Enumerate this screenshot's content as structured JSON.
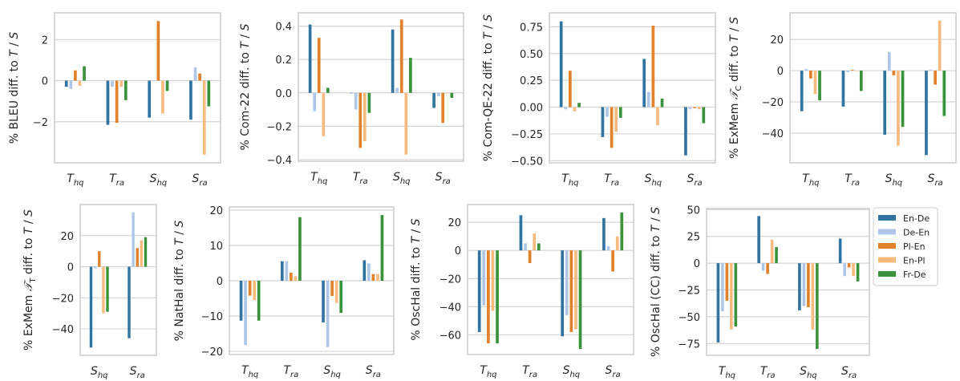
{
  "chart_data": [
    {
      "type": "bar",
      "ylabel": "% BLEU diff. to T / S",
      "categories": [
        "T_hq",
        "T_ra",
        "S_hq",
        "S_ra"
      ],
      "ylim": [
        -4.0,
        3.3
      ],
      "yticks": [
        2,
        0,
        -2
      ],
      "yticklabels": [
        "2",
        "0",
        "−2"
      ],
      "grid": true,
      "series": [
        {
          "name": "En-De",
          "values": [
            -0.3,
            -2.15,
            -1.8,
            -1.9
          ]
        },
        {
          "name": "De-En",
          "values": [
            -0.4,
            -0.3,
            0.0,
            0.65
          ]
        },
        {
          "name": "Pl-En",
          "values": [
            0.5,
            -2.05,
            2.9,
            0.35
          ]
        },
        {
          "name": "En-Pl",
          "values": [
            -0.25,
            -0.3,
            -1.6,
            -3.6
          ]
        },
        {
          "name": "Fr-De",
          "values": [
            0.7,
            -0.95,
            -0.5,
            -1.25
          ]
        }
      ]
    },
    {
      "type": "bar",
      "ylabel": "% Com-22 diff. to T / S",
      "categories": [
        "T_hq",
        "T_ra",
        "S_hq",
        "S_ra"
      ],
      "ylim": [
        -0.41,
        0.48
      ],
      "yticks": [
        0.4,
        0.2,
        0,
        -0.2,
        -0.4
      ],
      "yticklabels": [
        "0.4",
        "0.2",
        "0.0",
        "−0.2",
        "−0.4"
      ],
      "grid": true,
      "series": [
        {
          "name": "En-De",
          "values": [
            0.41,
            0.0,
            0.38,
            -0.09
          ]
        },
        {
          "name": "De-En",
          "values": [
            -0.11,
            -0.1,
            0.03,
            -0.02
          ]
        },
        {
          "name": "Pl-En",
          "values": [
            0.33,
            -0.33,
            0.44,
            -0.18
          ]
        },
        {
          "name": "En-Pl",
          "values": [
            -0.26,
            -0.29,
            -0.37,
            0.0
          ]
        },
        {
          "name": "Fr-De",
          "values": [
            0.03,
            -0.12,
            0.21,
            -0.03
          ]
        }
      ]
    },
    {
      "type": "bar",
      "ylabel": "% Com-QE-22 diff. to T / S",
      "categories": [
        "T_hq",
        "T_ra",
        "S_hq",
        "S_ra"
      ],
      "ylim": [
        -0.52,
        0.88
      ],
      "yticks": [
        0.75,
        0.5,
        0.25,
        0,
        -0.25,
        -0.5
      ],
      "yticklabels": [
        "0.75",
        "0.50",
        "0.25",
        "0.00",
        "−0.25",
        "−0.50"
      ],
      "grid": true,
      "series": [
        {
          "name": "En-De",
          "values": [
            0.8,
            -0.28,
            0.45,
            -0.45
          ]
        },
        {
          "name": "De-En",
          "values": [
            -0.02,
            -0.09,
            0.14,
            -0.02
          ]
        },
        {
          "name": "Pl-En",
          "values": [
            0.34,
            -0.38,
            0.76,
            -0.01
          ]
        },
        {
          "name": "En-Pl",
          "values": [
            -0.04,
            -0.23,
            -0.17,
            -0.02
          ]
        },
        {
          "name": "Fr-De",
          "values": [
            0.04,
            -0.1,
            0.08,
            -0.15
          ]
        }
      ]
    },
    {
      "type": "bar",
      "ylabel": "% ExMem 𝒯_C diff. to T / S",
      "categories": [
        "T_hq",
        "T_ra",
        "S_hq",
        "S_ra"
      ],
      "ylim": [
        -59,
        37
      ],
      "yticks": [
        20,
        0,
        -20,
        -40
      ],
      "yticklabels": [
        "20",
        "0",
        "−20",
        "−40"
      ],
      "grid": true,
      "series": [
        {
          "name": "En-De",
          "values": [
            -26,
            -23,
            -41,
            -54
          ]
        },
        {
          "name": "De-En",
          "values": [
            1,
            -1,
            12,
            0.5
          ]
        },
        {
          "name": "Pl-En",
          "values": [
            -5,
            0.5,
            -3,
            -9
          ]
        },
        {
          "name": "En-Pl",
          "values": [
            -15,
            0,
            -48,
            32
          ]
        },
        {
          "name": "Fr-De",
          "values": [
            -19,
            -13,
            -36,
            -29
          ]
        }
      ]
    },
    {
      "type": "bar",
      "ylabel": "% ExMem 𝒯_T diff. to T / S",
      "categories": [
        "S_hq",
        "S_ra"
      ],
      "ylim": [
        -57,
        40
      ],
      "yticks": [
        20,
        0,
        -20,
        -40
      ],
      "yticklabels": [
        "20",
        "0",
        "−20",
        "−40"
      ],
      "grid": true,
      "series": [
        {
          "name": "En-De",
          "values": [
            -52,
            -46
          ]
        },
        {
          "name": "De-En",
          "values": [
            -1,
            35
          ]
        },
        {
          "name": "Pl-En",
          "values": [
            10,
            12
          ]
        },
        {
          "name": "En-Pl",
          "values": [
            -30,
            17
          ]
        },
        {
          "name": "Fr-De",
          "values": [
            -29,
            19
          ]
        }
      ]
    },
    {
      "type": "bar",
      "ylabel": "% NatHal diff. to T / S",
      "categories": [
        "T_hq",
        "T_ra",
        "S_hq",
        "S_ra"
      ],
      "ylim": [
        -20.9,
        20.9
      ],
      "yticks": [
        20,
        10,
        0,
        -10,
        -20
      ],
      "yticklabels": [
        "20",
        "10",
        "0",
        "−10",
        "−20"
      ],
      "grid": true,
      "series": [
        {
          "name": "En-De",
          "values": [
            -11.3,
            5.5,
            -11.8,
            5.8
          ]
        },
        {
          "name": "De-En",
          "values": [
            -18.2,
            5.5,
            -18.8,
            4.9
          ]
        },
        {
          "name": "Pl-En",
          "values": [
            -4.2,
            2.3,
            -4.3,
            1.9
          ]
        },
        {
          "name": "En-Pl",
          "values": [
            -5.5,
            1.3,
            -6.3,
            1.9
          ]
        },
        {
          "name": "Fr-De",
          "values": [
            -11.3,
            18,
            -9.1,
            18.6
          ]
        }
      ]
    },
    {
      "type": "bar",
      "ylabel": "% OscHal diff. to T / S",
      "categories": [
        "T_hq",
        "T_ra",
        "S_hq",
        "S_ra"
      ],
      "ylim": [
        -74,
        32.6
      ],
      "yticks": [
        20,
        0,
        -20,
        -40,
        -60
      ],
      "yticklabels": [
        "20",
        "0",
        "−20",
        "−40",
        "−60"
      ],
      "grid": true,
      "series": [
        {
          "name": "En-De",
          "values": [
            -58,
            25,
            -61,
            23
          ]
        },
        {
          "name": "De-En",
          "values": [
            -39,
            5,
            -46,
            3
          ]
        },
        {
          "name": "Pl-En",
          "values": [
            -66,
            -9,
            -58,
            -15
          ]
        },
        {
          "name": "En-Pl",
          "values": [
            -43,
            12,
            -56,
            10
          ]
        },
        {
          "name": "Fr-De",
          "values": [
            -66,
            5,
            -70,
            27
          ]
        }
      ]
    },
    {
      "type": "bar",
      "ylabel": "% OscHal (CC) diff. to T / S",
      "categories": [
        "T_hq",
        "T_ra",
        "S_hq",
        "S_ra"
      ],
      "ylim": [
        -86,
        51
      ],
      "yticks": [
        50,
        25,
        0,
        -25,
        -50,
        -75
      ],
      "yticklabels": [
        "50",
        "25",
        "0",
        "−25",
        "−50",
        "−75"
      ],
      "grid": true,
      "legend": "right",
      "series": [
        {
          "name": "En-De",
          "values": [
            -74,
            44,
            -44,
            23
          ]
        },
        {
          "name": "De-En",
          "values": [
            -45,
            -7,
            -40,
            -12
          ]
        },
        {
          "name": "Pl-En",
          "values": [
            -35,
            -10,
            -41,
            -4
          ]
        },
        {
          "name": "En-Pl",
          "values": [
            -62,
            22,
            -62,
            -12
          ]
        },
        {
          "name": "Fr-De",
          "values": [
            -59,
            15,
            -80,
            -17
          ]
        }
      ]
    }
  ],
  "legend": {
    "entries": [
      "En-De",
      "De-En",
      "Pl-En",
      "En-Pl",
      "Fr-De"
    ],
    "colors": [
      "#3274a1",
      "#aec7e8",
      "#e1812c",
      "#f7bb80",
      "#3a923a"
    ]
  }
}
